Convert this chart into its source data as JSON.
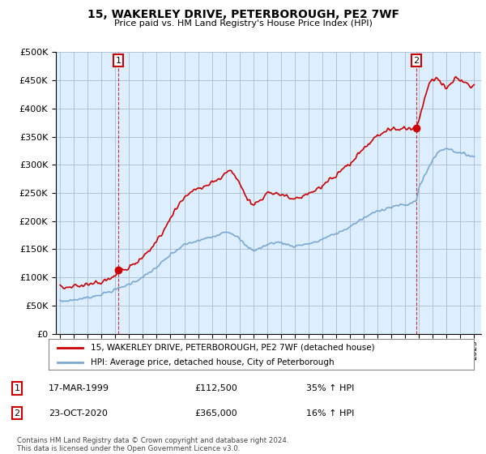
{
  "title": "15, WAKERLEY DRIVE, PETERBOROUGH, PE2 7WF",
  "subtitle": "Price paid vs. HM Land Registry's House Price Index (HPI)",
  "legend_label_red": "15, WAKERLEY DRIVE, PETERBOROUGH, PE2 7WF (detached house)",
  "legend_label_blue": "HPI: Average price, detached house, City of Peterborough",
  "annotation1_date": "17-MAR-1999",
  "annotation1_price": "£112,500",
  "annotation1_hpi": "35% ↑ HPI",
  "annotation2_date": "23-OCT-2020",
  "annotation2_price": "£365,000",
  "annotation2_hpi": "16% ↑ HPI",
  "footnote1": "Contains HM Land Registry data © Crown copyright and database right 2024.",
  "footnote2": "This data is licensed under the Open Government Licence v3.0.",
  "red_color": "#cc0000",
  "blue_color": "#7aa8d2",
  "fill_color": "#ddeeff",
  "background_color": "#ffffff",
  "plot_bg_color": "#ddeeff",
  "grid_color": "#aabbcc",
  "ylim": [
    0,
    500000
  ],
  "yticks": [
    0,
    50000,
    100000,
    150000,
    200000,
    250000,
    300000,
    350000,
    400000,
    450000,
    500000
  ],
  "sale1_x": 1999.21,
  "sale1_y": 112500,
  "sale2_x": 2020.81,
  "sale2_y": 365000,
  "xlim_left": 1994.7,
  "xlim_right": 2025.5
}
